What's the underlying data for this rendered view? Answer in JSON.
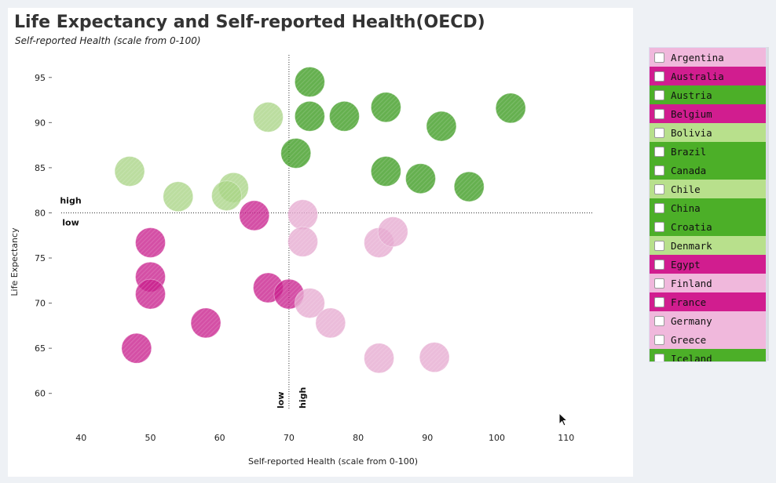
{
  "header": {
    "title": "Life Expectancy and Self-reported Health(OECD)",
    "subtitle": "Self-reported Health (scale from 0-100)"
  },
  "colors": {
    "dark_green": "#3a9a1e",
    "light_green": "#a8d484",
    "magenta": "#c81e8c",
    "light_pink": "#e6a9cf"
  },
  "chart_data": {
    "type": "scatter",
    "xlabel": "Self-reported Health (scale from 0-100)",
    "ylabel": "Life Expectancy",
    "xlim": [
      36,
      114
    ],
    "ylim": [
      56.5,
      97.5
    ],
    "x_ticks": [
      40,
      50,
      60,
      70,
      80,
      90,
      100,
      110
    ],
    "y_ticks": [
      60,
      65,
      70,
      75,
      80,
      85,
      90,
      95
    ],
    "ref_x": 70,
    "ref_y": 80,
    "quadrant_labels": {
      "y_high": "high",
      "y_low": "low",
      "x_low": "low",
      "x_high": "high"
    },
    "grid": false,
    "points": [
      {
        "x": 73,
        "y": 94.5,
        "group": "dark_green"
      },
      {
        "x": 67,
        "y": 90.6,
        "group": "light_green"
      },
      {
        "x": 73,
        "y": 90.7,
        "group": "dark_green"
      },
      {
        "x": 78,
        "y": 90.7,
        "group": "dark_green"
      },
      {
        "x": 84,
        "y": 91.7,
        "group": "dark_green"
      },
      {
        "x": 92,
        "y": 89.6,
        "group": "dark_green"
      },
      {
        "x": 102,
        "y": 91.6,
        "group": "dark_green"
      },
      {
        "x": 71,
        "y": 86.6,
        "group": "dark_green"
      },
      {
        "x": 47,
        "y": 84.6,
        "group": "light_green"
      },
      {
        "x": 62,
        "y": 82.8,
        "group": "light_green"
      },
      {
        "x": 54,
        "y": 81.8,
        "group": "light_green"
      },
      {
        "x": 61,
        "y": 81.9,
        "group": "light_green"
      },
      {
        "x": 84,
        "y": 84.6,
        "group": "dark_green"
      },
      {
        "x": 89,
        "y": 83.8,
        "group": "dark_green"
      },
      {
        "x": 96,
        "y": 82.9,
        "group": "dark_green"
      },
      {
        "x": 65,
        "y": 79.7,
        "group": "magenta"
      },
      {
        "x": 72,
        "y": 79.8,
        "group": "light_pink"
      },
      {
        "x": 72,
        "y": 76.8,
        "group": "light_pink"
      },
      {
        "x": 83,
        "y": 76.7,
        "group": "light_pink"
      },
      {
        "x": 85,
        "y": 77.9,
        "group": "light_pink"
      },
      {
        "x": 50,
        "y": 76.7,
        "group": "magenta"
      },
      {
        "x": 50,
        "y": 72.9,
        "group": "magenta"
      },
      {
        "x": 50,
        "y": 71.0,
        "group": "magenta"
      },
      {
        "x": 67,
        "y": 71.7,
        "group": "magenta"
      },
      {
        "x": 70,
        "y": 71.0,
        "group": "magenta"
      },
      {
        "x": 73,
        "y": 70.0,
        "group": "light_pink"
      },
      {
        "x": 76,
        "y": 67.8,
        "group": "light_pink"
      },
      {
        "x": 58,
        "y": 67.8,
        "group": "magenta"
      },
      {
        "x": 48,
        "y": 65.0,
        "group": "magenta"
      },
      {
        "x": 83,
        "y": 63.9,
        "group": "light_pink"
      },
      {
        "x": 91,
        "y": 64.0,
        "group": "light_pink"
      }
    ]
  },
  "countries": [
    {
      "name": "Argentina",
      "color": "#f0b8dc"
    },
    {
      "name": "Australia",
      "color": "#d11d8f"
    },
    {
      "name": "Austria",
      "color": "#4caf28"
    },
    {
      "name": "Belgium",
      "color": "#d11d8f"
    },
    {
      "name": "Bolivia",
      "color": "#b8e08c"
    },
    {
      "name": "Brazil",
      "color": "#4caf28"
    },
    {
      "name": "Canada",
      "color": "#4caf28"
    },
    {
      "name": "Chile",
      "color": "#b8e08c"
    },
    {
      "name": "China",
      "color": "#4caf28"
    },
    {
      "name": "Croatia",
      "color": "#4caf28"
    },
    {
      "name": "Denmark",
      "color": "#b8e08c"
    },
    {
      "name": "Egypt",
      "color": "#d11d8f"
    },
    {
      "name": "Finland",
      "color": "#f0b8dc"
    },
    {
      "name": "France",
      "color": "#d11d8f"
    },
    {
      "name": "Germany",
      "color": "#f0b8dc"
    },
    {
      "name": "Greece",
      "color": "#f0b8dc"
    },
    {
      "name": "Iceland",
      "color": "#4caf28"
    }
  ]
}
